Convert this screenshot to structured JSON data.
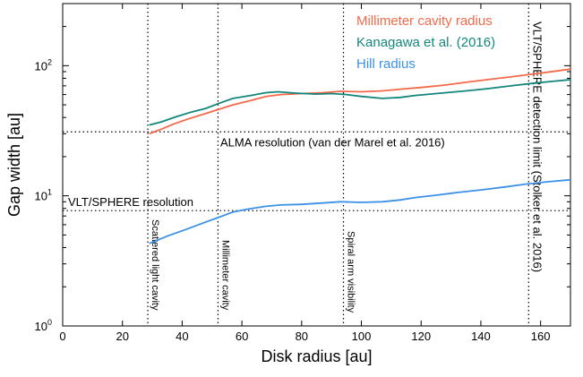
{
  "chart_data": {
    "type": "line",
    "xlabel": "Disk radius [au]",
    "ylabel": "Gap width [au]",
    "xlim": [
      0,
      170
    ],
    "ylim": [
      1,
      300
    ],
    "yscale": "log",
    "xticks": [
      0,
      20,
      40,
      60,
      80,
      100,
      120,
      140,
      160
    ],
    "yticks": [
      {
        "value": 1,
        "base": "10",
        "exp": "0"
      },
      {
        "value": 10,
        "base": "10",
        "exp": "1"
      },
      {
        "value": 100,
        "base": "10",
        "exp": "2"
      }
    ],
    "legend": "top-right",
    "grid": false,
    "series": [
      {
        "name": "Millimeter cavity radius",
        "color": "#f4694a",
        "x": [
          29,
          33,
          37,
          42,
          48,
          52,
          57,
          63,
          68,
          73,
          80,
          87,
          93,
          100,
          107,
          113,
          120,
          128,
          135,
          142,
          150,
          157,
          163,
          170
        ],
        "y": [
          30,
          32.5,
          35.5,
          39,
          43,
          46,
          50,
          54,
          58,
          60,
          61,
          62,
          63.5,
          63,
          64,
          66,
          68,
          71,
          74.5,
          78,
          82,
          86,
          89.5,
          94
        ]
      },
      {
        "name": "Kanagawa et al. (2016)",
        "color": "#13867c",
        "x": [
          29,
          33,
          38,
          43,
          48,
          52,
          57,
          63,
          68,
          72,
          78,
          85,
          90,
          95,
          100,
          107,
          113,
          118,
          125,
          130,
          135,
          142,
          150,
          157,
          163,
          170
        ],
        "y": [
          35,
          37,
          40.5,
          44,
          47,
          51,
          56,
          59,
          62,
          63,
          61.5,
          60.5,
          61,
          60,
          58,
          56,
          57,
          59,
          61,
          62.5,
          64,
          66.5,
          70,
          73,
          75.5,
          78
        ]
      },
      {
        "name": "Hill radius",
        "color": "#3c91e6",
        "x": [
          29,
          35,
          42,
          48,
          52,
          57,
          62,
          68,
          73,
          80,
          87,
          93,
          100,
          107,
          113,
          118,
          125,
          132,
          140,
          148,
          155,
          162,
          170
        ],
        "y": [
          4.3,
          4.9,
          5.6,
          6.3,
          6.8,
          7.5,
          7.9,
          8.3,
          8.5,
          8.6,
          8.8,
          9.0,
          8.9,
          9.0,
          9.3,
          9.7,
          10.1,
          10.6,
          11.1,
          11.7,
          12.3,
          12.8,
          13.3
        ]
      }
    ],
    "reference_lines": {
      "vertical": [
        {
          "x": 28.5,
          "label": "Scattered light cavity"
        },
        {
          "x": 52,
          "label": "Millimeter cavity"
        },
        {
          "x": 94,
          "label": "Spiral arm visibility"
        },
        {
          "x": 156,
          "label": "VLT/SPHERE detection limit (Stolker et al. 2016)"
        }
      ],
      "horizontal": [
        {
          "y": 31,
          "label": "ALMA resolution (van der Marel et al. 2016)"
        },
        {
          "y": 7.7,
          "label": "VLT/SPHERE resolution"
        }
      ]
    }
  }
}
